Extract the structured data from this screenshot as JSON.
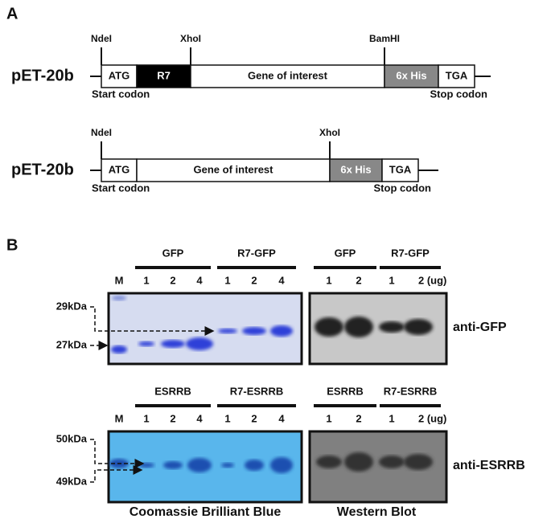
{
  "panel_a": {
    "label": "A",
    "constructs": [
      {
        "vector": "pET-20b",
        "sites": [
          "NdeI",
          "XhoI",
          "BamHI"
        ],
        "segments": [
          "ATG",
          "R7",
          "Gene of interest",
          "6x His",
          "TGA"
        ],
        "start": "Start codon",
        "stop": "Stop codon"
      },
      {
        "vector": "pET-20b",
        "sites": [
          "NdeI",
          "XhoI"
        ],
        "segments": [
          "ATG",
          "Gene of interest",
          "6x His",
          "TGA"
        ],
        "start": "Start codon",
        "stop": "Stop codon"
      }
    ]
  },
  "panel_b": {
    "label": "B",
    "blots": [
      {
        "coomassie_groups": [
          "GFP",
          "R7-GFP"
        ],
        "coomassie_lanes": [
          "M",
          "1",
          "2",
          "4",
          "1",
          "2",
          "4"
        ],
        "markers": [
          "29kDa",
          "27kDa"
        ],
        "western_groups": [
          "GFP",
          "R7-GFP"
        ],
        "western_lanes": [
          "1",
          "2",
          "1",
          "2 (ug)"
        ],
        "antibody": "anti-GFP"
      },
      {
        "coomassie_groups": [
          "ESRRB",
          "R7-ESRRB"
        ],
        "coomassie_lanes": [
          "M",
          "1",
          "2",
          "4",
          "1",
          "2",
          "4"
        ],
        "markers": [
          "50kDa",
          "49kDa"
        ],
        "western_groups": [
          "ESRRB",
          "R7-ESRRB"
        ],
        "western_lanes": [
          "1",
          "2",
          "1",
          "2 (ug)"
        ],
        "antibody": "anti-ESRRB"
      }
    ],
    "captions": [
      "Coomassie Brilliant Blue",
      "Western Blot"
    ]
  }
}
